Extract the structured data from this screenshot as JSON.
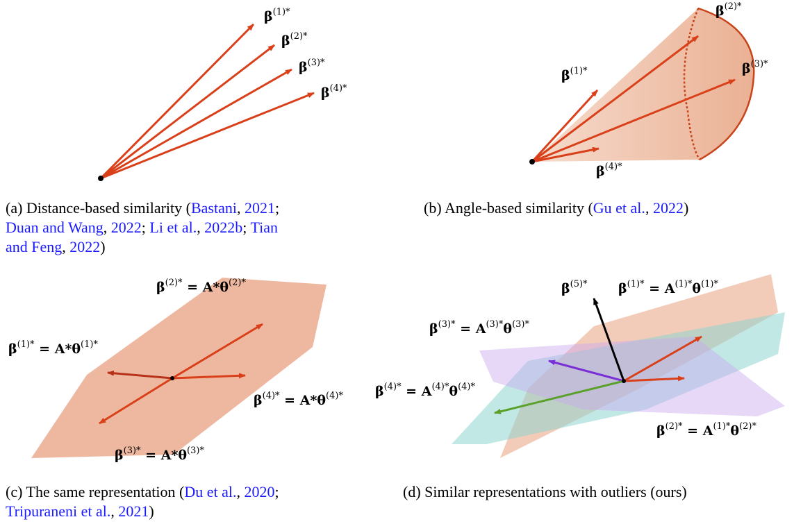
{
  "panels": {
    "a": {
      "labels": [
        {
          "base": "β",
          "sup": "(1)*"
        },
        {
          "base": "β",
          "sup": "(2)*"
        },
        {
          "base": "β",
          "sup": "(3)*"
        },
        {
          "base": "β",
          "sup": "(4)*"
        }
      ],
      "caption": {
        "prefix": "(a) Distance-based similarity (",
        "line1_cites": [
          "Bastani",
          "2021"
        ],
        "line2": [
          "Duan and Wang",
          "2022",
          "Li et al.",
          "2022b",
          "Tian"
        ],
        "line3": [
          "and Feng",
          "2022"
        ]
      }
    },
    "b": {
      "labels": [
        {
          "base": "β",
          "sup": "(1)*"
        },
        {
          "base": "β",
          "sup": "(2)*"
        },
        {
          "base": "β",
          "sup": "(3)*"
        },
        {
          "base": "β",
          "sup": "(4)*"
        }
      ],
      "caption": {
        "prefix": "(b) Angle-based similarity (",
        "cite": "Gu et al.",
        "year": "2022",
        "suffix": ")"
      }
    },
    "c": {
      "labels": [
        {
          "lhs": "β",
          "lsup": "(2)*",
          "rhs": " = A*θ",
          "rsup": "(2)*"
        },
        {
          "lhs": "β",
          "lsup": "(1)*",
          "rhs": " = A*θ",
          "rsup": "(1)*"
        },
        {
          "lhs": "β",
          "lsup": "(4)*",
          "rhs": " = A*θ",
          "rsup": "(4)*"
        },
        {
          "lhs": "β",
          "lsup": "(3)*",
          "rhs": " = A*θ",
          "rsup": "(3)*"
        }
      ],
      "caption": {
        "prefix": "(c) The same representation (",
        "cite1": "Du et al.",
        "year1": "2020",
        "cite2": "Tripuraneni et al.",
        "year2": "2021",
        "suffix": ")"
      }
    },
    "d": {
      "labels": [
        {
          "text": "β",
          "sup": "(5)*"
        },
        {
          "lhs": "β",
          "lsup": "(1)*",
          "rhs": " = A",
          "msup": "(1)*",
          "rhs2": "θ",
          "rsup": "(1)*"
        },
        {
          "lhs": "β",
          "lsup": "(3)*",
          "rhs": " = A",
          "msup": "(3)*",
          "rhs2": "θ",
          "rsup": "(3)*"
        },
        {
          "lhs": "β",
          "lsup": "(4)*",
          "rhs": " = A",
          "msup": "(4)*",
          "rhs2": "θ",
          "rsup": "(4)*"
        },
        {
          "lhs": "β",
          "lsup": "(2)*",
          "rhs": " = A",
          "msup": "(1)*",
          "rhs2": "θ",
          "rsup": "(2)*"
        }
      ],
      "caption": {
        "text": "(d) Similar representations with outliers (ours)"
      }
    }
  },
  "colors": {
    "arrow": "#d9401a",
    "dark_arrow": "#b8321a",
    "purple": "#7a2fd6",
    "green": "#5aa02a",
    "black": "#000000",
    "plane": "#e8a080",
    "teal": "#8fd6d0",
    "lavender": "#c9a8f0"
  }
}
